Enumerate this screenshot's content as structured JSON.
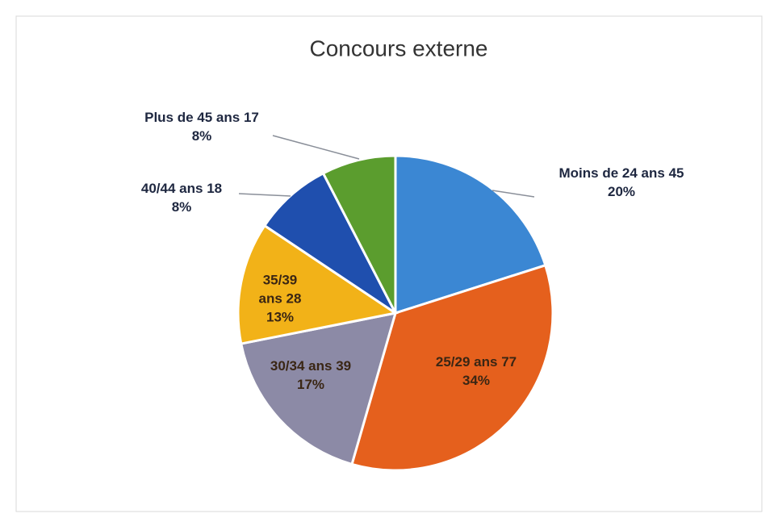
{
  "chart_data": {
    "type": "pie",
    "title": "Concours externe",
    "categories": [
      "Moins de 24 ans",
      "25/29 ans",
      "30/34 ans",
      "35/39 ans",
      "40/44 ans",
      "Plus de 45 ans"
    ],
    "values": [
      45,
      77,
      39,
      28,
      18,
      17
    ],
    "percent_labels": [
      "20%",
      "34%",
      "17%",
      "13%",
      "8%",
      "8%"
    ],
    "colors": [
      "#3b87d3",
      "#e5601d",
      "#8c8aa6",
      "#f2b218",
      "#1f4fae",
      "#5b9d2e"
    ]
  }
}
